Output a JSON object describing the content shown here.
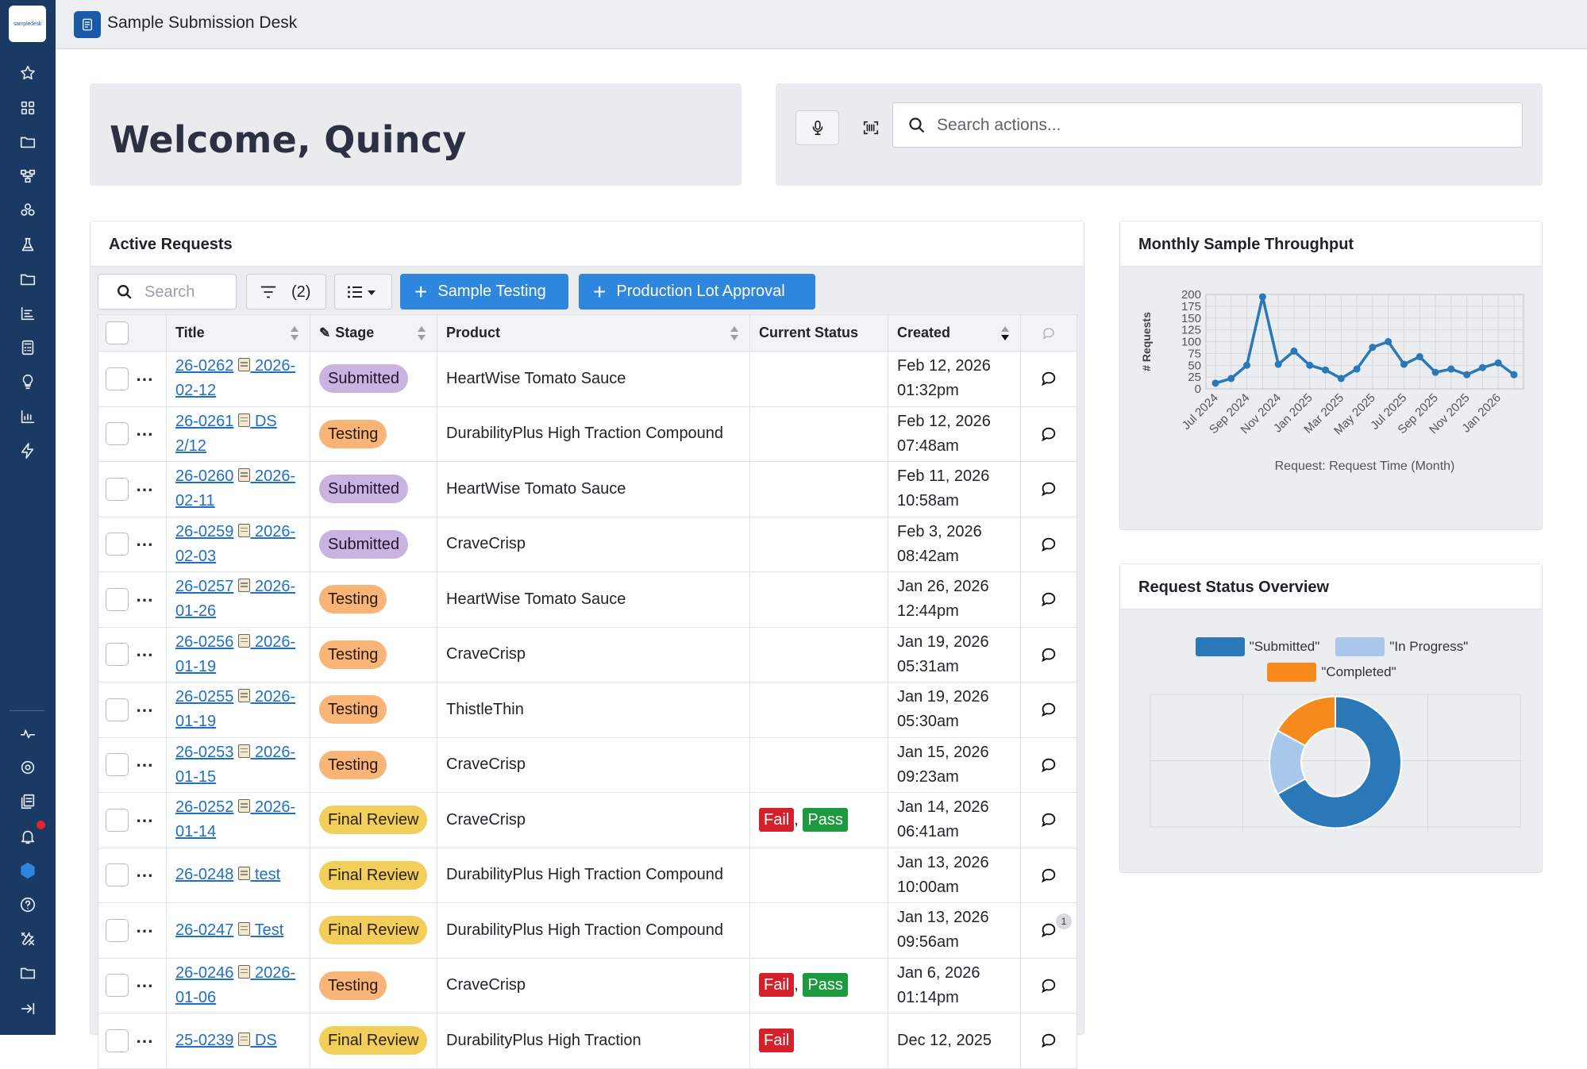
{
  "app": {
    "title": "Sample Submission Desk",
    "logo_text": "sampledesk"
  },
  "welcome": {
    "text": "Welcome, Quincy"
  },
  "actions": {
    "search_placeholder": "Search actions..."
  },
  "requests": {
    "card_title": "Active Requests",
    "search_placeholder": "Search",
    "filter_count": "(2)",
    "btn_sample": "Sample Testing",
    "btn_prod": "Production Lot Approval",
    "columns": [
      "Title",
      "Stage",
      "Product",
      "Current Status",
      "Created"
    ],
    "rows": [
      {
        "id": "26-0262",
        "sub": "2026-02-12",
        "stage": "Submitted",
        "product": "HeartWise Tomato Sauce",
        "status": "",
        "date": "Feb 12, 2026",
        "time": "01:32pm"
      },
      {
        "id": "26-0261",
        "sub": "DS 2/12",
        "stage": "Testing",
        "product": "DurabilityPlus High Traction Compound",
        "status": "",
        "date": "Feb 12, 2026",
        "time": "07:48am"
      },
      {
        "id": "26-0260",
        "sub": "2026-02-11",
        "stage": "Submitted",
        "product": "HeartWise Tomato Sauce",
        "status": "",
        "date": "Feb 11, 2026",
        "time": "10:58am"
      },
      {
        "id": "26-0259",
        "sub": "2026-02-03",
        "stage": "Submitted",
        "product": "CraveCrisp",
        "status": "",
        "date": "Feb 3, 2026",
        "time": "08:42am"
      },
      {
        "id": "26-0257",
        "sub": "2026-01-26",
        "stage": "Testing",
        "product": "HeartWise Tomato Sauce",
        "status": "",
        "date": "Jan 26, 2026",
        "time": "12:44pm"
      },
      {
        "id": "26-0256",
        "sub": "2026-01-19",
        "stage": "Testing",
        "product": "CraveCrisp",
        "status": "",
        "date": "Jan 19, 2026",
        "time": "05:31am"
      },
      {
        "id": "26-0255",
        "sub": "2026-01-19",
        "stage": "Testing",
        "product": "ThistleThin",
        "status": "",
        "date": "Jan 19, 2026",
        "time": "05:30am"
      },
      {
        "id": "26-0253",
        "sub": "2026-01-15",
        "stage": "Testing",
        "product": "CraveCrisp",
        "status": "",
        "date": "Jan 15, 2026",
        "time": "09:23am"
      },
      {
        "id": "26-0252",
        "sub": "2026-01-14",
        "stage": "Final Review",
        "product": "CraveCrisp",
        "status": "Fail, Pass",
        "date": "Jan 14, 2026",
        "time": "06:41am"
      },
      {
        "id": "26-0248",
        "sub": "test",
        "stage": "Final Review",
        "product": "DurabilityPlus High Traction Compound",
        "status": "",
        "date": "Jan 13, 2026",
        "time": "10:00am"
      },
      {
        "id": "26-0247",
        "sub": "Test",
        "stage": "Final Review",
        "product": "DurabilityPlus High Traction Compound",
        "status": "",
        "date": "Jan 13, 2026",
        "time": "09:56am",
        "comments": "1"
      },
      {
        "id": "26-0246",
        "sub": "2026-01-06",
        "stage": "Testing",
        "product": "CraveCrisp",
        "status": "Fail, Pass",
        "date": "Jan 6, 2026",
        "time": "01:14pm"
      },
      {
        "id": "25-0239",
        "sub": "DS",
        "stage": "Final Review",
        "product": "DurabilityPlus High Traction",
        "status": "Fail",
        "date": "Dec 12, 2025",
        "time": ""
      }
    ]
  },
  "throughput": {
    "card_title": "Monthly Sample Throughput",
    "chart_data": {
      "type": "line",
      "ylabel": "# Requests",
      "xlabel": "Request: Request Time (Month)",
      "ylim": [
        0,
        200
      ],
      "yticks": [
        0,
        25,
        50,
        75,
        100,
        125,
        150,
        175,
        200
      ],
      "xtick_labels": [
        "Jul 2024",
        "Sep 2024",
        "Nov 2024",
        "Jan 2025",
        "Mar 2025",
        "May 2025",
        "Jul 2025",
        "Sep 2025",
        "Nov 2025",
        "Jan 2026"
      ],
      "x": [
        "Jul 2024",
        "Aug 2024",
        "Sep 2024",
        "Oct 2024",
        "Nov 2024",
        "Dec 2024",
        "Jan 2025",
        "Feb 2025",
        "Mar 2025",
        "Apr 2025",
        "May 2025",
        "Jun 2025",
        "Jul 2025",
        "Aug 2025",
        "Sep 2025",
        "Oct 2025",
        "Nov 2025",
        "Dec 2025",
        "Jan 2026",
        "Feb 2026"
      ],
      "values": [
        12,
        22,
        50,
        195,
        52,
        80,
        50,
        40,
        22,
        42,
        88,
        100,
        52,
        68,
        35,
        42,
        30,
        45,
        55,
        30
      ],
      "color": "#2a78b8",
      "grid": true
    }
  },
  "status_overview": {
    "card_title": "Request Status Overview",
    "chart_data": {
      "type": "pie",
      "labels": [
        "\"Submitted\"",
        "\"In Progress\"",
        "\"Completed\""
      ],
      "values": [
        67,
        16,
        17
      ],
      "colors": [
        "#2a78b8",
        "#a9c7ea",
        "#f78a1d"
      ],
      "donut": true
    }
  }
}
